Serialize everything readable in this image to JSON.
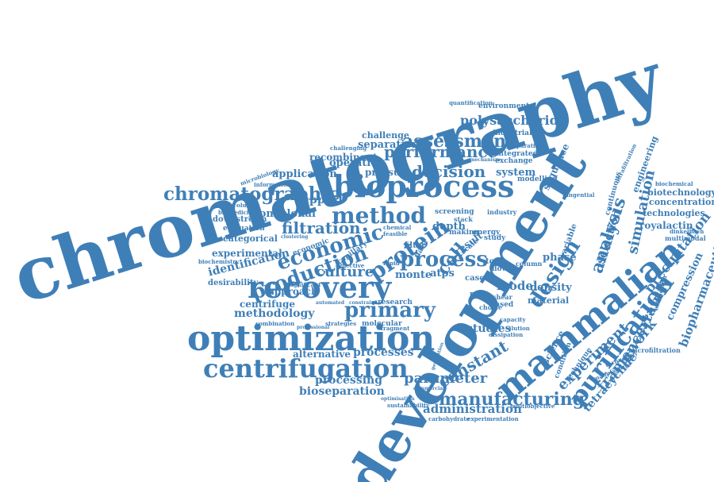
{
  "color": "#3f7fb7",
  "words": [
    "chromatography",
    "development",
    "mammalian",
    "optimization",
    "recovery",
    "bioprocess",
    "centrifugation",
    "purification",
    "method",
    "protein",
    "chromatographic",
    "economic",
    "production",
    "primary",
    "design",
    "assessment",
    "performance",
    "decision",
    "polysaccharide",
    "filtration",
    "process",
    "cell",
    "culture",
    "analysis",
    "simulation",
    "manufacturing",
    "experiment",
    "uncertainty",
    "framework",
    "precipitation",
    "biopharmaceutical",
    "tetracycline",
    "constant",
    "parameter",
    "administration",
    "bioseparation",
    "processing",
    "processes",
    "alternative",
    "methodology",
    "centrifuge",
    "approach",
    "identification",
    "experimental",
    "categorical",
    "monoclonal",
    "support",
    "application",
    "operation",
    "separation",
    "challenge",
    "recombinant",
    "pressure",
    "system",
    "sequence",
    "selection",
    "phase",
    "model",
    "studies",
    "density",
    "material",
    "depth",
    "atps",
    "monte",
    "compression",
    "royalactin",
    "technologies",
    "biotechnology",
    "concentration",
    "engineering",
    "biochemical",
    "multimodal",
    "dinkelbach",
    "microfiltration",
    "technology",
    "extraction",
    "environmental",
    "industrial",
    "integrated",
    "exchange",
    "modelling",
    "sustainability",
    "carbohydrate",
    "experimentation",
    "multiobjective",
    "molecular",
    "fragment",
    "research",
    "combination",
    "strategies",
    "desirability",
    "biochemistry",
    "evaluation",
    "downstream",
    "information",
    "biomedicine",
    "robocolumns",
    "microbiology",
    "quantification",
    "significant",
    "capillary",
    "economic",
    "filter",
    "data",
    "screening",
    "industry",
    "stack",
    "energy",
    "making",
    "tool",
    "flow",
    "column",
    "study",
    "resin",
    "case",
    "choice",
    "shear",
    "based",
    "dissipation",
    "optimisation",
    "commercial",
    "technique",
    "science",
    "condition",
    "variable",
    "continuous",
    "ultrafiltration",
    "manufacture",
    "preparative",
    "mechanism",
    "challenging",
    "tangential",
    "rapid",
    "scale",
    "result",
    "automated",
    "constraint",
    "professional",
    "generation",
    "chemical",
    "feasible",
    "clustering",
    "objective",
    "elution",
    "capacity"
  ]
}
